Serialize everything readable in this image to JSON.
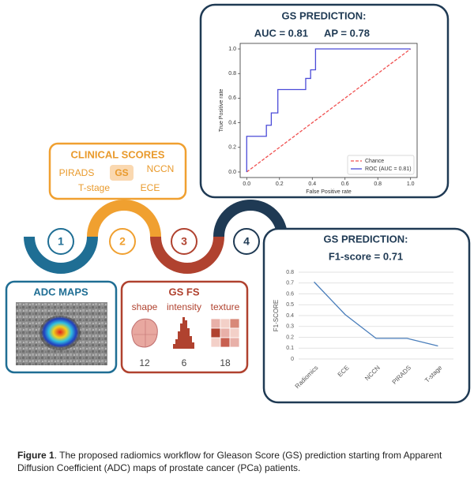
{
  "steps": [
    "1",
    "2",
    "3",
    "4"
  ],
  "adc": {
    "title": "ADC MAPS"
  },
  "clinical": {
    "title": "CLINICAL SCORES",
    "items": [
      "PIRADS",
      "GS",
      "NCCN",
      "T-stage",
      "ECE"
    ]
  },
  "gsfs": {
    "title": "GS FS",
    "features": [
      {
        "label": "shape",
        "count": 12
      },
      {
        "label": "intensity",
        "count": 6
      },
      {
        "label": "texture",
        "count": 18
      }
    ]
  },
  "roc_panel": {
    "title": "GS PREDICTION:",
    "auc": "AUC = 0.81",
    "ap": "AP = 0.78"
  },
  "f1_panel": {
    "title": "GS PREDICTION:",
    "score": "F1-score = 0.71"
  },
  "chart_data": [
    {
      "type": "line",
      "xlabel": "False Positive rate",
      "ylabel": "True Positive rate",
      "xlim": [
        -0.04,
        1.04
      ],
      "ylim": [
        -0.045,
        1.045
      ],
      "xticks": [
        {
          "value": 0,
          "label": "0.0"
        },
        {
          "value": 0.2,
          "label": "0.2"
        },
        {
          "value": 0.4,
          "label": "0.4"
        },
        {
          "value": 0.6,
          "label": "0.6"
        },
        {
          "value": 0.8,
          "label": "0.8"
        },
        {
          "value": 1,
          "label": "1.0"
        }
      ],
      "yticks": [
        {
          "value": 0,
          "label": "0.0"
        },
        {
          "value": 0.2,
          "label": "0.2"
        },
        {
          "value": 0.4,
          "label": "0.4"
        },
        {
          "value": 0.6,
          "label": "0.6"
        },
        {
          "value": 0.8,
          "label": "0.8"
        },
        {
          "value": 1,
          "label": "1.0"
        }
      ],
      "legend": "lower right",
      "series": [
        {
          "name": "Chance",
          "color": "#f05050",
          "style": "dashed",
          "x": [
            0,
            1
          ],
          "values": [
            0,
            1
          ]
        },
        {
          "name": "ROC (AUC = 0.81)",
          "color": "#4b4bd8",
          "style": "solid",
          "x": [
            0,
            0,
            0.12,
            0.12,
            0.15,
            0.15,
            0.19,
            0.19,
            0.36,
            0.36,
            0.39,
            0.39,
            0.42,
            0.42,
            1
          ],
          "values": [
            0,
            0.29,
            0.29,
            0.38,
            0.38,
            0.48,
            0.48,
            0.67,
            0.67,
            0.76,
            0.76,
            0.83,
            0.83,
            1,
            1
          ]
        }
      ]
    },
    {
      "type": "line",
      "ylabel": "F1-SCORE",
      "categories": [
        "Radiomics",
        "ECE",
        "NCCN",
        "PIRADS",
        "T-stage"
      ],
      "values": [
        0.71,
        0.41,
        0.19,
        0.19,
        0.12
      ],
      "color": "#4a7ebb",
      "ylim": [
        0,
        0.8
      ],
      "yticks": [
        0,
        0.1,
        0.2,
        0.3,
        0.4,
        0.5,
        0.6,
        0.7,
        0.8
      ],
      "grid": true
    }
  ],
  "caption": {
    "label": "Figure 1",
    "text": ". The proposed radiomics workflow for Gleason Score (GS) prediction starting from Apparent Diffusion Coefficient (ADC) maps of prostate cancer (PCa) patients."
  }
}
